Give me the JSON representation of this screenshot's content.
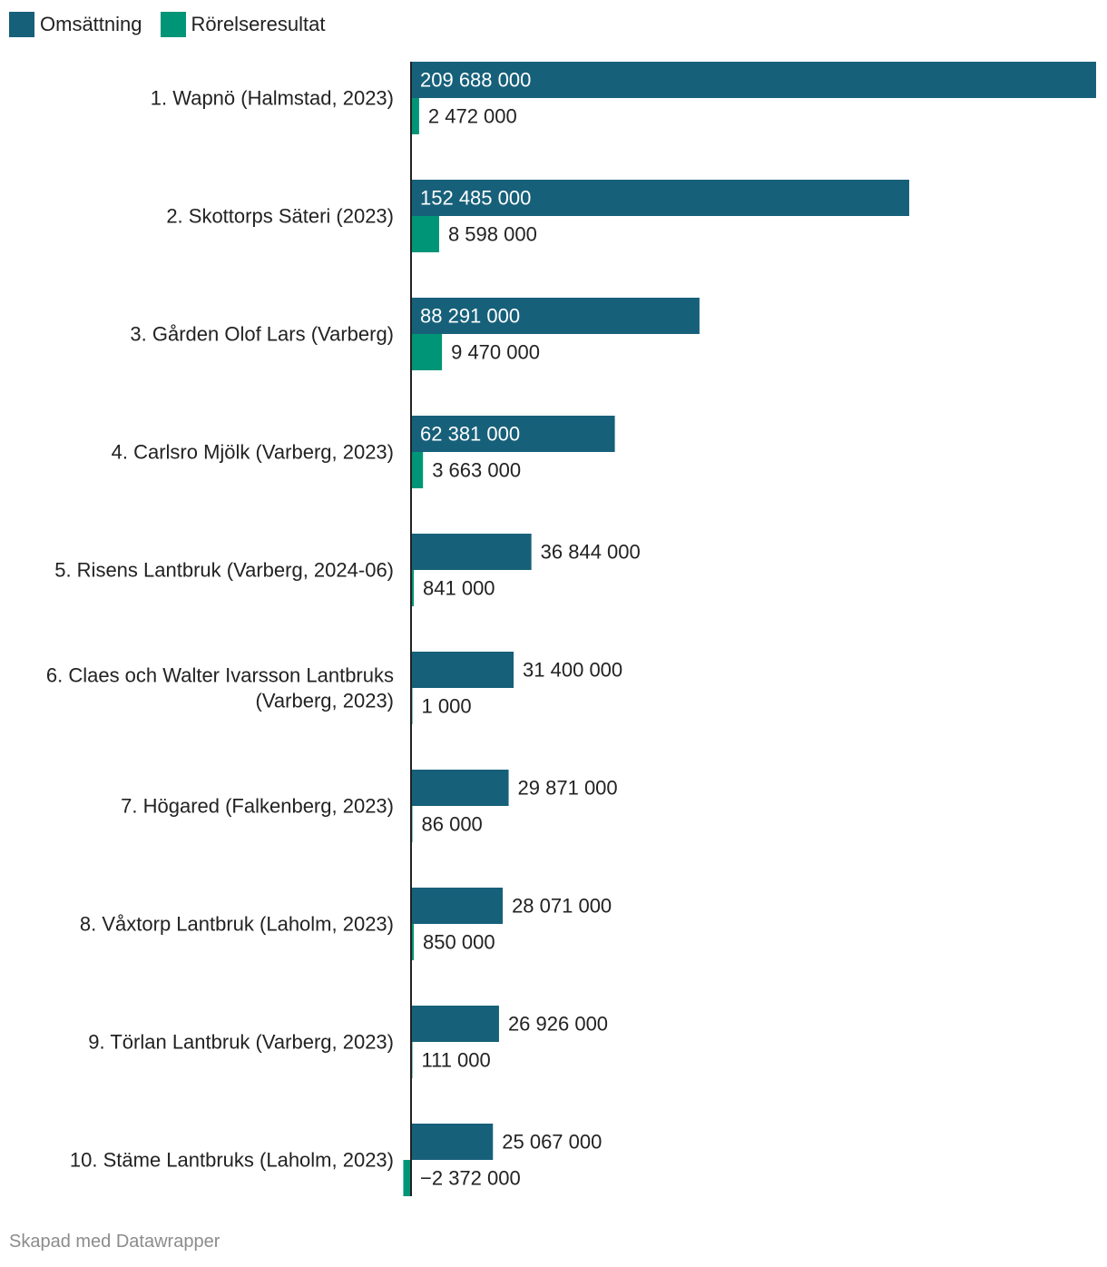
{
  "chart_data": {
    "type": "bar",
    "orientation": "horizontal",
    "categories": [
      [
        "1. Wapnö (Halmstad, 2023)"
      ],
      [
        "2. Skottorps Säteri (2023)"
      ],
      [
        "3. Gården Olof Lars (Varberg)"
      ],
      [
        "4. Carlsro Mjölk (Varberg, 2023)"
      ],
      [
        "5. Risens Lantbruk (Varberg, 2024-06)"
      ],
      [
        "6. Claes och Walter Ivarsson Lantbruks",
        "(Varberg, 2023)"
      ],
      [
        "7. Högared (Falkenberg, 2023)"
      ],
      [
        "8. Våxtorp Lantbruk (Laholm, 2023)"
      ],
      [
        "9. Törlan Lantbruk (Varberg, 2023)"
      ],
      [
        "10. Stäme Lantbruks (Laholm, 2023)"
      ]
    ],
    "series": [
      {
        "name": "Omsättning",
        "color": "#17607a",
        "values": [
          209688000,
          152485000,
          88291000,
          62381000,
          36844000,
          31400000,
          29871000,
          28071000,
          26926000,
          25067000
        ],
        "labels": [
          "209 688 000",
          "152 485 000",
          "88 291 000",
          "62 381 000",
          "36 844 000",
          "31 400 000",
          "29 871 000",
          "28 071 000",
          "26 926 000",
          "25 067 000"
        ]
      },
      {
        "name": "Rörelseresultat",
        "color": "#009577",
        "values": [
          2472000,
          8598000,
          9470000,
          3663000,
          841000,
          1000,
          86000,
          850000,
          111000,
          -2372000
        ],
        "labels": [
          "2 472 000",
          "8 598 000",
          "9 470 000",
          "3 663 000",
          "841 000",
          "1 000",
          "86 000",
          "850 000",
          "111 000",
          "−2 372 000"
        ]
      }
    ],
    "xlim": [
      0,
      209688000
    ],
    "legend_position": "top-left",
    "grid": false
  },
  "footer": {
    "credit": "Skapad med Datawrapper"
  }
}
